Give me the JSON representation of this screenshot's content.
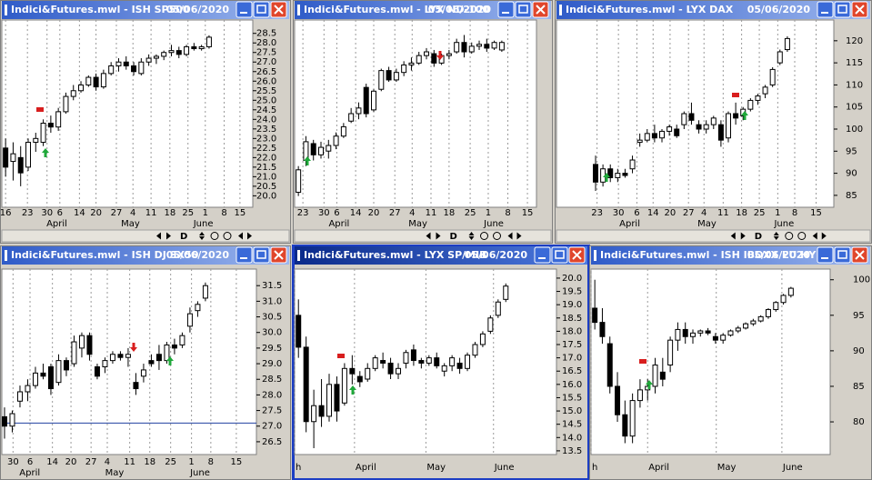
{
  "ui": {
    "scroll_button": "D"
  },
  "chart_data": [
    {
      "type": "candlestick",
      "title": "Indici&Futures.mwl - ISH SP500",
      "date": "05/06/2020",
      "up_color": "#ffffff",
      "down_color": "#000000",
      "xlim": [
        -0.5,
        32.8
      ],
      "ylim": [
        19.4,
        29.2
      ],
      "yticks": [
        {
          "value": 20,
          "label": "20.0"
        },
        20.5,
        {
          "value": 21,
          "label": "21.0"
        },
        21.5,
        {
          "value": 22,
          "label": "22.0"
        },
        22.5,
        {
          "value": 23,
          "label": "23.0"
        },
        23.5,
        {
          "value": 24,
          "label": "24.0"
        },
        24.5,
        {
          "value": 25,
          "label": "25.0"
        },
        25.5,
        {
          "value": 26,
          "label": "26.0"
        },
        26.5,
        {
          "value": 27,
          "label": "27.0"
        },
        27.5,
        {
          "value": 28,
          "label": "28.0"
        },
        28.5
      ],
      "xticks": [
        {
          "value": 0,
          "label": "16"
        },
        {
          "value": 2.9,
          "label": "23"
        },
        {
          "value": 5.5,
          "label": "30"
        },
        {
          "value": 7.2,
          "label": "6"
        },
        {
          "value": 9.8,
          "label": "14"
        },
        {
          "value": 12,
          "label": "20"
        },
        {
          "value": 14.7,
          "label": "27"
        },
        {
          "value": 16.9,
          "label": "4"
        },
        {
          "value": 19.3,
          "label": "11"
        },
        {
          "value": 21.8,
          "label": "18"
        },
        {
          "value": 24.2,
          "label": "25"
        },
        {
          "value": 26.5,
          "label": "1"
        },
        {
          "value": 29,
          "label": "8"
        },
        {
          "value": 31.1,
          "label": "15"
        }
      ],
      "month_ticks": [
        {
          "value": 5.3,
          "label": "April"
        },
        {
          "value": 15.2,
          "label": "May"
        },
        {
          "value": 24.8,
          "label": "June"
        }
      ],
      "open": [
        22.5,
        21.8,
        22.0,
        21.5,
        22.8,
        22.8,
        23.8,
        23.6,
        24.4,
        25.2,
        25.5,
        25.8,
        26.2,
        25.7,
        26.4,
        26.8,
        27.0,
        26.8,
        26.4,
        27.0,
        27.2,
        27.3,
        27.5,
        27.6,
        27.4,
        27.8,
        27.7,
        27.8
      ],
      "high": [
        23.0,
        22.8,
        22.6,
        23.0,
        23.3,
        24.0,
        24.2,
        24.6,
        25.4,
        25.8,
        26.0,
        26.3,
        26.4,
        26.6,
        27.0,
        27.2,
        27.3,
        27.0,
        27.2,
        27.4,
        27.4,
        27.6,
        27.9,
        27.8,
        27.9,
        28.0,
        27.9,
        28.4
      ],
      "low": [
        21.0,
        20.8,
        20.5,
        21.3,
        22.3,
        22.6,
        23.3,
        23.4,
        24.3,
        25.0,
        25.4,
        25.7,
        25.5,
        25.6,
        26.3,
        26.5,
        26.6,
        26.3,
        26.3,
        26.8,
        26.9,
        27.1,
        27.3,
        27.2,
        27.3,
        27.6,
        27.6,
        27.7
      ],
      "close": [
        21.5,
        22.2,
        21.2,
        22.8,
        23.0,
        23.8,
        23.6,
        24.4,
        25.2,
        25.5,
        25.8,
        26.2,
        25.7,
        26.4,
        26.8,
        27.0,
        26.8,
        26.5,
        27.0,
        27.2,
        27.3,
        27.5,
        27.6,
        27.4,
        27.8,
        27.7,
        27.8,
        28.3
      ]
    },
    {
      "type": "candlestick",
      "title": "Indici&Futures.mwl - LYX ND-100",
      "date": "05/06/2020",
      "up_color": "#ffffff",
      "down_color": "#000000",
      "xlim": [
        -0.5,
        31.6
      ],
      "ylim": [
        19,
        29
      ],
      "xticks": [
        {
          "value": 0.6,
          "label": "23"
        },
        {
          "value": 3.4,
          "label": "30"
        },
        {
          "value": 5.1,
          "label": "6"
        },
        {
          "value": 7.6,
          "label": "14"
        },
        {
          "value": 10,
          "label": "20"
        },
        {
          "value": 12.8,
          "label": "27"
        },
        {
          "value": 15.1,
          "label": "4"
        },
        {
          "value": 17.6,
          "label": "11"
        },
        {
          "value": 20,
          "label": "18"
        },
        {
          "value": 22.8,
          "label": "25"
        },
        {
          "value": 25.2,
          "label": "1"
        },
        {
          "value": 27.8,
          "label": "8"
        },
        {
          "value": 30.4,
          "label": "15"
        }
      ],
      "month_ticks": [
        {
          "value": 3.9,
          "label": "April"
        },
        {
          "value": 14.5,
          "label": "May"
        },
        {
          "value": 24.5,
          "label": "June"
        }
      ],
      "open": [
        19.8,
        21.5,
        22.4,
        21.8,
        22.0,
        22.3,
        22.8,
        23.6,
        24.0,
        25.4,
        24.2,
        25.3,
        26.3,
        25.8,
        26.2,
        26.6,
        26.7,
        27.1,
        27.2,
        26.7,
        27.1,
        27.3,
        27.8,
        27.3,
        27.6,
        27.7,
        27.5,
        27.4
      ],
      "high": [
        21.2,
        22.8,
        22.6,
        22.5,
        22.6,
        23.0,
        23.5,
        24.3,
        24.6,
        25.6,
        25.3,
        26.4,
        26.5,
        26.4,
        26.8,
        27.0,
        27.3,
        27.5,
        27.4,
        27.2,
        27.4,
        28.0,
        28.2,
        27.8,
        27.9,
        28.0,
        27.9,
        27.9
      ],
      "low": [
        19.6,
        21.2,
        21.5,
        21.6,
        21.6,
        22.1,
        22.7,
        23.5,
        23.7,
        23.8,
        24.1,
        25.2,
        25.7,
        25.7,
        26.0,
        26.3,
        26.6,
        26.9,
        26.5,
        26.6,
        26.9,
        27.2,
        27.0,
        27.2,
        27.4,
        27.3,
        27.4,
        27.3
      ],
      "close": [
        21.0,
        22.5,
        21.8,
        22.2,
        22.3,
        22.8,
        23.3,
        24.0,
        24.3,
        24.0,
        25.2,
        26.3,
        25.8,
        26.2,
        26.6,
        26.7,
        27.1,
        27.3,
        26.7,
        27.1,
        27.2,
        27.8,
        27.3,
        27.6,
        27.7,
        27.5,
        27.8,
        27.8
      ]
    },
    {
      "type": "candlestick",
      "title": "Indici&Futures.mwl - LYX DAX",
      "date": "05/06/2020",
      "up_color": "#ffffff",
      "down_color": "#000000",
      "xlim": [
        -5.3,
        32.3
      ],
      "ylim": [
        82.3,
        124.7
      ],
      "yticks": [
        85,
        90,
        95,
        100,
        105,
        110,
        115,
        120
      ],
      "xticks": [
        {
          "value": 0.2,
          "label": "23"
        },
        {
          "value": 3.1,
          "label": "30"
        },
        {
          "value": 5.6,
          "label": "6"
        },
        {
          "value": 7.8,
          "label": "14"
        },
        {
          "value": 10.1,
          "label": "20"
        },
        {
          "value": 12.6,
          "label": "27"
        },
        {
          "value": 14.7,
          "label": "4"
        },
        {
          "value": 17.3,
          "label": "11"
        },
        {
          "value": 19.8,
          "label": "18"
        },
        {
          "value": 22.2,
          "label": "25"
        },
        {
          "value": 24.7,
          "label": "1"
        },
        {
          "value": 27,
          "label": "8"
        },
        {
          "value": 29.9,
          "label": "15"
        }
      ],
      "month_ticks": [
        {
          "value": 3.1,
          "label": "April"
        },
        {
          "value": 13.7,
          "label": "May"
        },
        {
          "value": 24.1,
          "label": "June"
        }
      ],
      "open": [
        92,
        88,
        91,
        89,
        90,
        91,
        97,
        97.5,
        99,
        98,
        99.5,
        100,
        101,
        103.5,
        101,
        100,
        101,
        101,
        98,
        103.5,
        103,
        104.5,
        106.5,
        108,
        110,
        115,
        118
      ],
      "high": [
        94,
        92,
        92,
        91,
        91,
        94,
        99,
        100,
        101,
        100,
        101,
        101,
        104,
        106,
        102,
        102,
        103,
        102,
        104,
        106,
        105,
        107,
        108,
        110,
        114,
        118,
        121
      ],
      "low": [
        86,
        87,
        88,
        88,
        89,
        90,
        96,
        97,
        97,
        97,
        98.5,
        98,
        100,
        101,
        99,
        99,
        100,
        96,
        97,
        101,
        102,
        104,
        105.5,
        107,
        109.5,
        114.5,
        117.5
      ],
      "close": [
        88,
        91,
        89,
        90,
        89.5,
        93,
        97.5,
        99,
        98,
        99.5,
        100.5,
        98.5,
        103.5,
        102,
        100,
        101,
        102.5,
        97.5,
        103.5,
        102.5,
        104.5,
        106.5,
        107.5,
        109.5,
        113.5,
        117.5,
        120.5
      ]
    },
    {
      "type": "candlestick",
      "title": "Indici&Futures.mwl - ISH DJ SX50",
      "date": "05/06/2020",
      "up_color": "#ffffff",
      "down_color": "#000000",
      "xlim": [
        -0.35,
        32.6
      ],
      "ylim": [
        26.09,
        32.03
      ],
      "hline": 27.1,
      "hline_color": "#2040a0",
      "yticks": [
        26.5,
        {
          "value": 27,
          "label": "27.0"
        },
        27.5,
        {
          "value": 28,
          "label": "28.0"
        },
        28.5,
        {
          "value": 29,
          "label": "29.0"
        },
        29.5,
        {
          "value": 30,
          "label": "30.0"
        },
        30.5,
        {
          "value": 31,
          "label": "31.0"
        },
        31.5
      ],
      "xticks": [
        {
          "value": 1.1,
          "label": "30"
        },
        {
          "value": 3.3,
          "label": "6"
        },
        {
          "value": 6.2,
          "label": "14"
        },
        {
          "value": 8.6,
          "label": "20"
        },
        {
          "value": 11.2,
          "label": "27"
        },
        {
          "value": 13.3,
          "label": "4"
        },
        {
          "value": 16.2,
          "label": "11"
        },
        {
          "value": 18.8,
          "label": "18"
        },
        {
          "value": 21.5,
          "label": "25"
        },
        {
          "value": 24.2,
          "label": "1"
        },
        {
          "value": 26.7,
          "label": "8"
        },
        {
          "value": 30,
          "label": "15"
        }
      ],
      "month_ticks": [
        {
          "value": 1.8,
          "label": "April"
        },
        {
          "value": 12.9,
          "label": "May"
        },
        {
          "value": 23.9,
          "label": "June"
        }
      ],
      "open": [
        27.3,
        27.0,
        27.8,
        28.1,
        28.3,
        28.7,
        28.9,
        28.4,
        29.1,
        29.0,
        29.5,
        29.9,
        28.9,
        28.9,
        29.1,
        29.3,
        29.2,
        28.4,
        28.6,
        29.1,
        29.3,
        29.1,
        29.6,
        29.6,
        30.2,
        30.7,
        31.1
      ],
      "high": [
        27.6,
        27.5,
        28.3,
        28.5,
        28.9,
        29.0,
        29.0,
        29.3,
        29.2,
        29.9,
        30.0,
        30.0,
        29.0,
        29.2,
        29.4,
        29.4,
        29.5,
        28.7,
        29.0,
        29.3,
        29.6,
        29.7,
        29.8,
        30.0,
        30.8,
        31.0,
        31.6
      ],
      "low": [
        26.6,
        26.8,
        27.6,
        27.8,
        28.2,
        28.5,
        28.0,
        28.3,
        28.6,
        28.9,
        29.2,
        29.1,
        28.5,
        28.7,
        29.0,
        29.1,
        28.9,
        28.0,
        28.4,
        28.9,
        28.8,
        29.0,
        29.3,
        29.5,
        30.0,
        30.5,
        31.0
      ],
      "close": [
        27.0,
        27.4,
        28.1,
        28.3,
        28.7,
        28.6,
        28.2,
        29.1,
        28.8,
        29.7,
        29.9,
        29.3,
        28.6,
        29.1,
        29.3,
        29.2,
        29.3,
        28.2,
        28.8,
        29.0,
        29.1,
        29.6,
        29.5,
        29.9,
        30.6,
        30.9,
        31.5
      ]
    },
    {
      "type": "candlestick",
      "title": "Indici&Futures.mwl - LYX SP/MIB",
      "date": "05/06/2020",
      "up_color": "#ffffff",
      "down_color": "#000000",
      "xlim": [
        -0.5,
        33.6
      ],
      "ylim": [
        13.36,
        20.34
      ],
      "yticks": [
        13.5,
        {
          "value": 14,
          "label": "14.0"
        },
        14.5,
        {
          "value": 15,
          "label": "15.0"
        },
        15.5,
        {
          "value": 16,
          "label": "16.0"
        },
        16.5,
        {
          "value": 17,
          "label": "17.0"
        },
        17.5,
        {
          "value": 18,
          "label": "18.0"
        },
        18.5,
        {
          "value": 19,
          "label": "19.0"
        },
        19.5,
        {
          "value": 20,
          "label": "20.0"
        }
      ],
      "month_ticks": [
        {
          "value": -0.5,
          "label": "h"
        },
        {
          "value": 7.3,
          "label": "April"
        },
        {
          "value": 16.6,
          "label": "May"
        },
        {
          "value": 25.4,
          "label": "June"
        }
      ],
      "open": [
        18.6,
        17.4,
        14.6,
        15.2,
        14.8,
        16.0,
        15.3,
        16.6,
        16.3,
        16.2,
        16.6,
        16.9,
        16.8,
        16.4,
        16.8,
        17.3,
        16.9,
        16.8,
        17.0,
        16.5,
        16.7,
        16.8,
        16.6,
        17.1,
        17.5,
        18.0,
        18.6,
        19.2
      ],
      "high": [
        19.2,
        17.8,
        15.8,
        16.2,
        16.4,
        16.3,
        16.8,
        17.1,
        16.5,
        16.8,
        17.1,
        17.2,
        17.0,
        16.8,
        17.3,
        17.5,
        17.0,
        17.1,
        17.2,
        16.8,
        17.1,
        17.0,
        17.2,
        17.6,
        18.0,
        18.6,
        19.2,
        19.8
      ],
      "low": [
        17.0,
        14.2,
        13.6,
        14.4,
        14.6,
        14.6,
        15.2,
        16.0,
        15.9,
        16.1,
        16.5,
        16.6,
        16.2,
        16.2,
        16.6,
        16.7,
        16.6,
        16.7,
        16.6,
        16.3,
        16.5,
        16.4,
        16.5,
        17.0,
        17.4,
        17.9,
        18.5,
        19.1
      ],
      "close": [
        17.4,
        14.6,
        15.2,
        14.8,
        16.0,
        15.0,
        16.6,
        16.4,
        16.1,
        16.6,
        17.0,
        16.8,
        16.4,
        16.6,
        17.2,
        16.9,
        16.8,
        17.0,
        16.7,
        16.7,
        17.0,
        16.6,
        17.1,
        17.5,
        17.9,
        18.5,
        19.1,
        19.7
      ]
    },
    {
      "type": "candlestick",
      "title": "Indici&Futures.mwl - ISH IBOXX EU HY",
      "date": "05/06/2020",
      "up_color": "#ffffff",
      "down_color": "#000000",
      "xlim": [
        -0.5,
        31.2
      ],
      "ylim": [
        75.4,
        101.5
      ],
      "yticks": [
        80,
        85,
        90,
        95,
        100
      ],
      "month_ticks": [
        {
          "value": -0.5,
          "label": "h"
        },
        {
          "value": 7,
          "label": "April"
        },
        {
          "value": 16.1,
          "label": "May"
        },
        {
          "value": 24.8,
          "label": "June"
        }
      ],
      "open": [
        96,
        94,
        91,
        85,
        81,
        78,
        83,
        84.5,
        85,
        87,
        88,
        91.5,
        93,
        92,
        92.5,
        92.8,
        92,
        91.5,
        92.2,
        92.8,
        93.2,
        93.8,
        94.2,
        94.8,
        95.8,
        96.8,
        97.8
      ],
      "high": [
        100,
        96,
        92,
        87,
        83,
        84,
        86,
        86,
        89,
        89,
        92,
        94,
        94,
        93,
        93,
        93.2,
        92.5,
        92.5,
        93,
        93.5,
        94,
        94.5,
        95,
        96,
        97,
        98,
        99
      ],
      "low": [
        93,
        91,
        84,
        80,
        77,
        77,
        82,
        83,
        84,
        85,
        87,
        90,
        91,
        91,
        92,
        92.2,
        91,
        91,
        92,
        92.5,
        93,
        93.5,
        94,
        94.5,
        95.5,
        96.5,
        97.5
      ],
      "close": [
        94,
        92,
        85,
        81,
        78,
        83,
        84.5,
        85,
        88,
        86,
        91.5,
        93,
        92,
        92.5,
        92.8,
        92.5,
        91.5,
        92.2,
        92.8,
        93.2,
        93.8,
        94.2,
        94.8,
        95.8,
        96.8,
        97.8,
        98.8
      ]
    }
  ]
}
